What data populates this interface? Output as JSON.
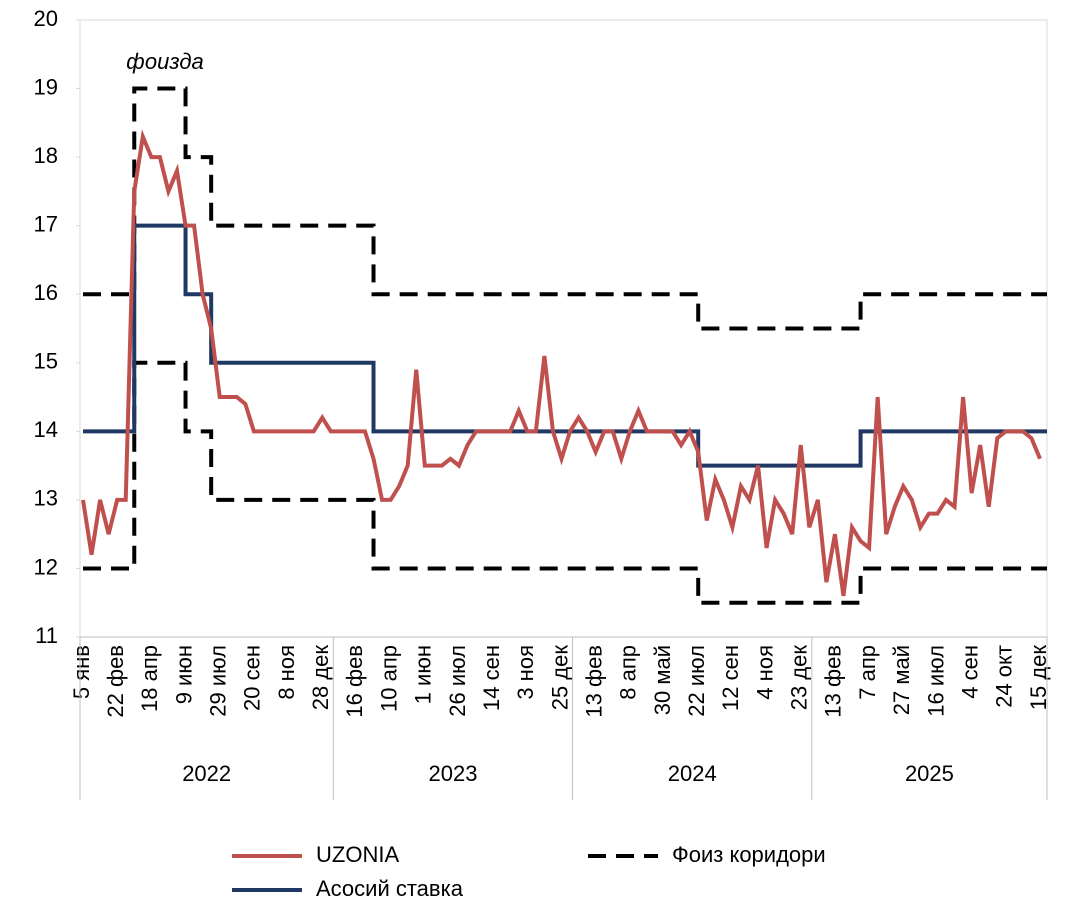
{
  "chart_data": {
    "type": "line",
    "annotation": "фоизда",
    "categories": [
      "5 янв",
      null,
      null,
      null,
      "22 фев",
      null,
      null,
      null,
      "18 апр",
      null,
      null,
      null,
      "9 июн",
      null,
      null,
      null,
      "29 июл",
      null,
      null,
      null,
      "20 сен",
      null,
      null,
      null,
      "8 ноя",
      null,
      null,
      null,
      "28 дек",
      null,
      null,
      null,
      "16 фев",
      null,
      null,
      null,
      "10 апр",
      null,
      null,
      null,
      "1 июн",
      null,
      null,
      null,
      "26 июл",
      null,
      null,
      null,
      "14 сен",
      null,
      null,
      null,
      "3 ноя",
      null,
      null,
      null,
      "25 дек",
      null,
      null,
      null,
      "13 фев",
      null,
      null,
      null,
      "8 апр",
      null,
      null,
      null,
      "30 май",
      null,
      null,
      null,
      "22 июл",
      null,
      null,
      null,
      "12 сен",
      null,
      null,
      null,
      "4 ноя",
      null,
      null,
      null,
      "23 дек",
      null,
      null,
      null,
      "13 фев",
      null,
      null,
      null,
      "7 апр",
      null,
      null,
      null,
      "27 май",
      null,
      null,
      null,
      "16 июл",
      null,
      null,
      null,
      "4 сен",
      null,
      null,
      null,
      "24 окт",
      null,
      null,
      null,
      "15 дек"
    ],
    "years": [
      "2022",
      "2023",
      "2024",
      "2025"
    ],
    "series": [
      {
        "name": "UZONIA",
        "color": "#c0504d",
        "step": false,
        "values": [
          13,
          12.2,
          13,
          12.5,
          13,
          13,
          17.5,
          18.3,
          18,
          18,
          17.5,
          17.8,
          17,
          17,
          16,
          15.5,
          14.5,
          14.5,
          14.5,
          14.4,
          14,
          14,
          14,
          14,
          14,
          14,
          14,
          14,
          14.2,
          14,
          14,
          14,
          14,
          14,
          13.6,
          13,
          13,
          13.2,
          13.5,
          14.9,
          13.5,
          13.5,
          13.5,
          13.6,
          13.5,
          13.8,
          14,
          14,
          14,
          14,
          14,
          14.3,
          14,
          14,
          15.1,
          14,
          13.6,
          14,
          14.2,
          14,
          13.7,
          14,
          14,
          13.6,
          14,
          14.3,
          14,
          14,
          14,
          14,
          13.8,
          14,
          13.7,
          12.7,
          13.3,
          13,
          12.6,
          13.2,
          13,
          13.5,
          12.3,
          13,
          12.8,
          12.5,
          13.8,
          12.6,
          13,
          11.8,
          12.5,
          11.6,
          12.6,
          12.4,
          12.3,
          14.5,
          12.5,
          12.9,
          13.2,
          13,
          12.6,
          12.8,
          12.8,
          13,
          12.9,
          14.5,
          13.1,
          13.8,
          12.9,
          13.9,
          14,
          14,
          14,
          13.9,
          13.6
        ]
      },
      {
        "name": "Асосий ставка",
        "color": "#1f3864",
        "step": true,
        "values": [
          14,
          14,
          14,
          14,
          14,
          14,
          17,
          17,
          17,
          17,
          17,
          17,
          16,
          16,
          16,
          15,
          15,
          15,
          15,
          15,
          15,
          15,
          15,
          15,
          15,
          15,
          15,
          15,
          15,
          15,
          15,
          15,
          15,
          15,
          14,
          14,
          14,
          14,
          14,
          14,
          14,
          14,
          14,
          14,
          14,
          14,
          14,
          14,
          14,
          14,
          14,
          14,
          14,
          14,
          14,
          14,
          14,
          14,
          14,
          14,
          14,
          14,
          14,
          14,
          14,
          14,
          14,
          14,
          14,
          14,
          14,
          14,
          13.5,
          13.5,
          13.5,
          13.5,
          13.5,
          13.5,
          13.5,
          13.5,
          13.5,
          13.5,
          13.5,
          13.5,
          13.5,
          13.5,
          13.5,
          13.5,
          13.5,
          13.5,
          13.5,
          14,
          14,
          14,
          14,
          14,
          14,
          14,
          14,
          14,
          14,
          14,
          14,
          14,
          14,
          14,
          14,
          14,
          14,
          14,
          14,
          14,
          14
        ]
      },
      {
        "name": "Фоиз коридори",
        "color": "#000000",
        "step": true,
        "dashed": true,
        "upper": [
          16,
          16,
          16,
          16,
          16,
          16,
          19,
          19,
          19,
          19,
          19,
          19,
          18,
          18,
          18,
          17,
          17,
          17,
          17,
          17,
          17,
          17,
          17,
          17,
          17,
          17,
          17,
          17,
          17,
          17,
          17,
          17,
          17,
          17,
          16,
          16,
          16,
          16,
          16,
          16,
          16,
          16,
          16,
          16,
          16,
          16,
          16,
          16,
          16,
          16,
          16,
          16,
          16,
          16,
          16,
          16,
          16,
          16,
          16,
          16,
          16,
          16,
          16,
          16,
          16,
          16,
          16,
          16,
          16,
          16,
          16,
          16,
          15.5,
          15.5,
          15.5,
          15.5,
          15.5,
          15.5,
          15.5,
          15.5,
          15.5,
          15.5,
          15.5,
          15.5,
          15.5,
          15.5,
          15.5,
          15.5,
          15.5,
          15.5,
          15.5,
          16,
          16,
          16,
          16,
          16,
          16,
          16,
          16,
          16,
          16,
          16,
          16,
          16,
          16,
          16,
          16,
          16,
          16,
          16,
          16,
          16,
          16
        ],
        "lower": [
          12,
          12,
          12,
          12,
          12,
          12,
          15,
          15,
          15,
          15,
          15,
          15,
          14,
          14,
          14,
          13,
          13,
          13,
          13,
          13,
          13,
          13,
          13,
          13,
          13,
          13,
          13,
          13,
          13,
          13,
          13,
          13,
          13,
          13,
          12,
          12,
          12,
          12,
          12,
          12,
          12,
          12,
          12,
          12,
          12,
          12,
          12,
          12,
          12,
          12,
          12,
          12,
          12,
          12,
          12,
          12,
          12,
          12,
          12,
          12,
          12,
          12,
          12,
          12,
          12,
          12,
          12,
          12,
          12,
          12,
          12,
          12,
          11.5,
          11.5,
          11.5,
          11.5,
          11.5,
          11.5,
          11.5,
          11.5,
          11.5,
          11.5,
          11.5,
          11.5,
          11.5,
          11.5,
          11.5,
          11.5,
          11.5,
          11.5,
          11.5,
          12,
          12,
          12,
          12,
          12,
          12,
          12,
          12,
          12,
          12,
          12,
          12,
          12,
          12,
          12,
          12,
          12,
          12,
          12,
          12,
          12,
          12
        ]
      }
    ],
    "ylim": [
      11,
      20
    ],
    "yticks": [
      11,
      12,
      13,
      14,
      15,
      16,
      17,
      18,
      19,
      20
    ]
  }
}
